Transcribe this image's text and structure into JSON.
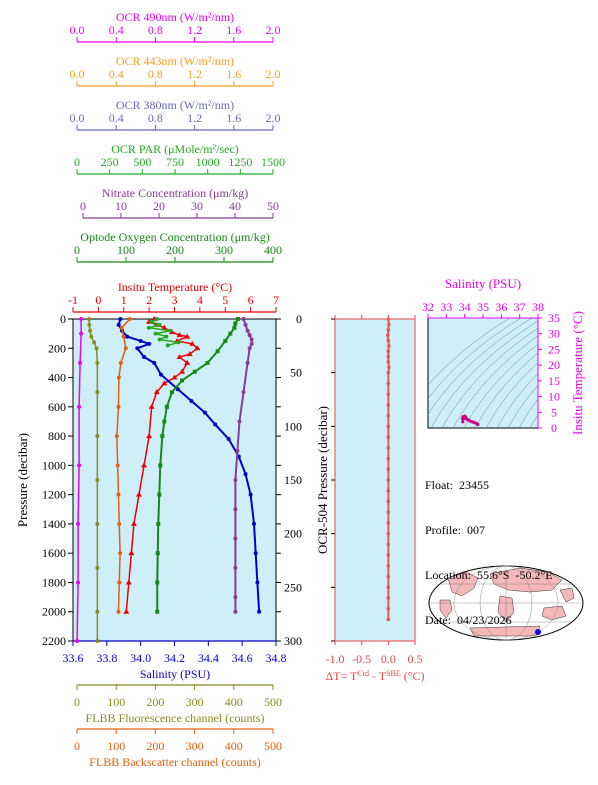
{
  "chart_data": {
    "type": "line",
    "main_profile": {
      "ylabel": "Pressure (decibar)",
      "y_ticks": [
        "0",
        "200",
        "400",
        "600",
        "800",
        "1000",
        "1200",
        "1400",
        "1600",
        "1800",
        "2000",
        "2200"
      ],
      "ylim": [
        2200,
        0
      ],
      "top_axes": [
        {
          "key": "ocr490",
          "label": "OCR 490nm (W/m²/nm)",
          "color": "#ee00ee",
          "ticks": [
            "0.0",
            "0.4",
            "0.8",
            "1.2",
            "1.6",
            "2.0"
          ]
        },
        {
          "key": "ocr443",
          "label": "OCR 443nm (W/m²/nm)",
          "color": "#f0a020",
          "ticks": [
            "0.0",
            "0.4",
            "0.8",
            "1.2",
            "1.6",
            "2.0"
          ]
        },
        {
          "key": "ocr380",
          "label": "OCR 380nm (W/m²/nm)",
          "color": "#6a6ab8",
          "ticks": [
            "0.0",
            "0.4",
            "0.8",
            "1.2",
            "1.6",
            "2.0"
          ]
        },
        {
          "key": "par",
          "label": "OCR PAR (μMole/m²/sec)",
          "color": "#22aa22",
          "ticks": [
            "0",
            "250",
            "500",
            "750",
            "1000",
            "1250",
            "1500"
          ]
        },
        {
          "key": "nitrate",
          "label": "Nitrate Concentration (μm/kg)",
          "color": "#8a3a9a",
          "ticks": [
            "0",
            "10",
            "20",
            "30",
            "40",
            "50"
          ]
        },
        {
          "key": "oxygen",
          "label": "Optode Oxygen Concentration (μm/kg)",
          "color": "#138a13",
          "ticks": [
            "0",
            "100",
            "200",
            "300",
            "400"
          ]
        },
        {
          "key": "temp",
          "label": "Insitu Temperature (°C)",
          "color": "#ee0000",
          "ticks": [
            "-1",
            "0",
            "1",
            "2",
            "3",
            "4",
            "5",
            "6",
            "7"
          ]
        }
      ],
      "bottom_axes": [
        {
          "key": "salinity",
          "label": "Salinity (PSU)",
          "color": "#0000cc",
          "ticks": [
            "33.6",
            "33.8",
            "34.0",
            "34.2",
            "34.4",
            "34.6",
            "34.8"
          ]
        },
        {
          "key": "fluorescence",
          "label": "FLBB Fluorescence channel (counts)",
          "color": "#8a8a20",
          "ticks": [
            "0",
            "100",
            "200",
            "300",
            "400",
            "500"
          ]
        },
        {
          "key": "backscatter",
          "label": "FLBB Backscatter channel (counts)",
          "color": "#e06010",
          "ticks": [
            "0",
            "100",
            "200",
            "300",
            "400",
            "500"
          ]
        }
      ],
      "series": [
        {
          "key": "temp",
          "axis_min": -1,
          "axis_max": 7,
          "marker": "triangle",
          "points": [
            [
              2.2,
              0
            ],
            [
              2.0,
              20
            ],
            [
              2.3,
              40
            ],
            [
              2.6,
              60
            ],
            [
              2.9,
              90
            ],
            [
              3.2,
              110
            ],
            [
              3.5,
              120
            ],
            [
              3.1,
              150
            ],
            [
              3.7,
              170
            ],
            [
              3.9,
              200
            ],
            [
              3.6,
              240
            ],
            [
              3.2,
              260
            ],
            [
              3.5,
              300
            ],
            [
              3.3,
              360
            ],
            [
              3.0,
              400
            ],
            [
              2.6,
              440
            ],
            [
              2.3,
              500
            ],
            [
              2.1,
              600
            ],
            [
              2.0,
              800
            ],
            [
              1.8,
              1000
            ],
            [
              1.6,
              1200
            ],
            [
              1.4,
              1400
            ],
            [
              1.3,
              1600
            ],
            [
              1.2,
              1800
            ],
            [
              1.1,
              2000
            ]
          ]
        },
        {
          "key": "salinity",
          "axis_min": 33.6,
          "axis_max": 34.8,
          "marker": "circle",
          "points": [
            [
              33.88,
              0
            ],
            [
              33.87,
              40
            ],
            [
              33.89,
              80
            ],
            [
              33.92,
              120
            ],
            [
              34.0,
              150
            ],
            [
              34.05,
              170
            ],
            [
              33.98,
              200
            ],
            [
              34.02,
              260
            ],
            [
              34.08,
              300
            ],
            [
              34.12,
              380
            ],
            [
              34.22,
              480
            ],
            [
              34.3,
              560
            ],
            [
              34.38,
              640
            ],
            [
              34.44,
              720
            ],
            [
              34.52,
              820
            ],
            [
              34.58,
              940
            ],
            [
              34.62,
              1060
            ],
            [
              34.65,
              1200
            ],
            [
              34.67,
              1400
            ],
            [
              34.68,
              1600
            ],
            [
              34.69,
              1800
            ],
            [
              34.7,
              2000
            ]
          ]
        },
        {
          "key": "oxygen",
          "axis_min": 0,
          "axis_max": 400,
          "marker": "square",
          "points": [
            [
              325,
              0
            ],
            [
              320,
              30
            ],
            [
              318,
              60
            ],
            [
              310,
              100
            ],
            [
              300,
              150
            ],
            [
              285,
              220
            ],
            [
              265,
              300
            ],
            [
              240,
              360
            ],
            [
              215,
              420
            ],
            [
              195,
              500
            ],
            [
              185,
              600
            ],
            [
              180,
              700
            ],
            [
              176,
              800
            ],
            [
              172,
              1000
            ],
            [
              170,
              1200
            ],
            [
              168,
              1400
            ],
            [
              167,
              1600
            ],
            [
              166,
              1800
            ],
            [
              166,
              2000
            ]
          ]
        },
        {
          "key": "nitrate",
          "axis_min": 0,
          "axis_max": 50,
          "marker": "circle",
          "points": [
            [
              42,
              0
            ],
            [
              42.5,
              40
            ],
            [
              43,
              80
            ],
            [
              43.5,
              110
            ],
            [
              44,
              140
            ],
            [
              44,
              170
            ],
            [
              43.5,
              200
            ],
            [
              43,
              300
            ],
            [
              42,
              500
            ],
            [
              41,
              700
            ],
            [
              40.5,
              900
            ],
            [
              40,
              1100
            ],
            [
              40,
              1300
            ],
            [
              40,
              1500
            ],
            [
              40,
              1700
            ],
            [
              40,
              1900
            ],
            [
              40,
              2000
            ]
          ]
        },
        {
          "key": "fluorescence",
          "axis_min": 0,
          "axis_max": 500,
          "marker": "circle",
          "points": [
            [
              40,
              0
            ],
            [
              40,
              40
            ],
            [
              42,
              80
            ],
            [
              45,
              120
            ],
            [
              52,
              160
            ],
            [
              58,
              200
            ],
            [
              60,
              300
            ],
            [
              60,
              500
            ],
            [
              60,
              800
            ],
            [
              60,
              1100
            ],
            [
              60,
              1400
            ],
            [
              60,
              1700
            ],
            [
              60,
              2000
            ],
            [
              60,
              2200
            ]
          ]
        },
        {
          "key": "backscatter",
          "axis_min": 0,
          "axis_max": 500,
          "marker": "circle",
          "points": [
            [
              140,
              0
            ],
            [
              120,
              60
            ],
            [
              125,
              120
            ],
            [
              130,
              200
            ],
            [
              118,
              300
            ],
            [
              113,
              400
            ],
            [
              112,
              600
            ],
            [
              108,
              800
            ],
            [
              110,
              1000
            ],
            [
              112,
              1200
            ],
            [
              114,
              1400
            ],
            [
              116,
              1600
            ],
            [
              114,
              1800
            ],
            [
              112,
              2000
            ]
          ]
        },
        {
          "key": "par",
          "axis_min": 0,
          "axis_max": 1500,
          "marker": "circle",
          "points": [
            [
              620,
              0
            ],
            [
              580,
              20
            ],
            [
              640,
              40
            ],
            [
              560,
              60
            ],
            [
              720,
              80
            ],
            [
              610,
              100
            ],
            [
              690,
              120
            ],
            [
              640,
              140
            ],
            [
              780,
              160
            ],
            [
              700,
              180
            ]
          ]
        },
        {
          "key": "ocr490",
          "axis_min": 0,
          "axis_max": 2.0,
          "marker": "circle",
          "points": [
            [
              0.08,
              0
            ],
            [
              0.08,
              100
            ],
            [
              0.07,
              300
            ],
            [
              0.06,
              600
            ],
            [
              0.06,
              1000
            ],
            [
              0.05,
              1400
            ],
            [
              0.05,
              1800
            ],
            [
              0.04,
              2200
            ]
          ]
        }
      ]
    },
    "delta_t_panel": {
      "ylabel": "OCR-504 Pressure (decibar)",
      "xlabel": "ΔT= T^Ctd - T^SBE (°C)",
      "x_ticks": [
        "-1.0",
        "-0.5",
        "0.0",
        "0.5"
      ],
      "xlim": [
        -1.0,
        0.5
      ],
      "y_ticks": [
        "0",
        "50",
        "100",
        "150",
        "200",
        "250",
        "300"
      ],
      "ylim": [
        300,
        0
      ],
      "series": [
        {
          "name": "delta-t",
          "color": "#ee5555",
          "points": [
            [
              0.0,
              0
            ],
            [
              0.01,
              5
            ],
            [
              0.0,
              10
            ],
            [
              -0.01,
              15
            ],
            [
              0.0,
              20
            ],
            [
              0.01,
              25
            ],
            [
              0.0,
              30
            ],
            [
              0.0,
              35
            ],
            [
              0.0,
              40
            ],
            [
              0.01,
              45
            ],
            [
              0.0,
              50
            ],
            [
              0.0,
              60
            ],
            [
              0.0,
              70
            ],
            [
              0.0,
              80
            ],
            [
              0.0,
              90
            ],
            [
              0.0,
              100
            ],
            [
              0.0,
              110
            ],
            [
              0.0,
              120
            ],
            [
              0.0,
              130
            ],
            [
              0.0,
              140
            ],
            [
              0.0,
              150
            ],
            [
              0.0,
              160
            ],
            [
              0.0,
              170
            ],
            [
              0.0,
              180
            ],
            [
              0.0,
              190
            ],
            [
              0.0,
              200
            ],
            [
              0.0,
              210
            ],
            [
              0.0,
              220
            ],
            [
              0.0,
              230
            ],
            [
              0.0,
              240
            ],
            [
              0.0,
              250
            ],
            [
              0.0,
              260
            ],
            [
              0.0,
              270
            ],
            [
              0.0,
              280
            ]
          ]
        }
      ]
    },
    "ts_panel": {
      "xlabel": "Salinity (PSU)",
      "ylabel": "Insitu Temperature (°C)",
      "x_ticks": [
        "32",
        "33",
        "34",
        "35",
        "36",
        "37",
        "38"
      ],
      "xlim": [
        32,
        38
      ],
      "y_ticks": [
        "0",
        "5",
        "10",
        "15",
        "20",
        "25",
        "30",
        "35"
      ],
      "ylim": [
        0,
        35
      ],
      "points": [
        [
          33.9,
          2.0
        ],
        [
          33.95,
          3.2
        ],
        [
          34.0,
          3.8
        ],
        [
          34.05,
          3.5
        ],
        [
          34.1,
          3.0
        ],
        [
          34.2,
          2.6
        ],
        [
          34.3,
          2.2
        ],
        [
          34.4,
          2.0
        ],
        [
          34.5,
          1.8
        ],
        [
          34.6,
          1.6
        ],
        [
          34.7,
          1.3
        ],
        [
          34.72,
          1.1
        ],
        [
          33.88,
          3.0
        ],
        [
          33.92,
          3.6
        ]
      ]
    }
  },
  "info": {
    "float": "Float:  23455",
    "profile": "Profile:  007",
    "location": "Location:  55.6°S  -50.2°E",
    "date": "Date:  04/23/2026"
  },
  "colors": {
    "panel_bg": "#cfeff8",
    "ts_bg": "#cfeff8",
    "map_land": "#f4b8b8",
    "map_ocean": "#ffffff",
    "float_marker": "#0000ff"
  }
}
